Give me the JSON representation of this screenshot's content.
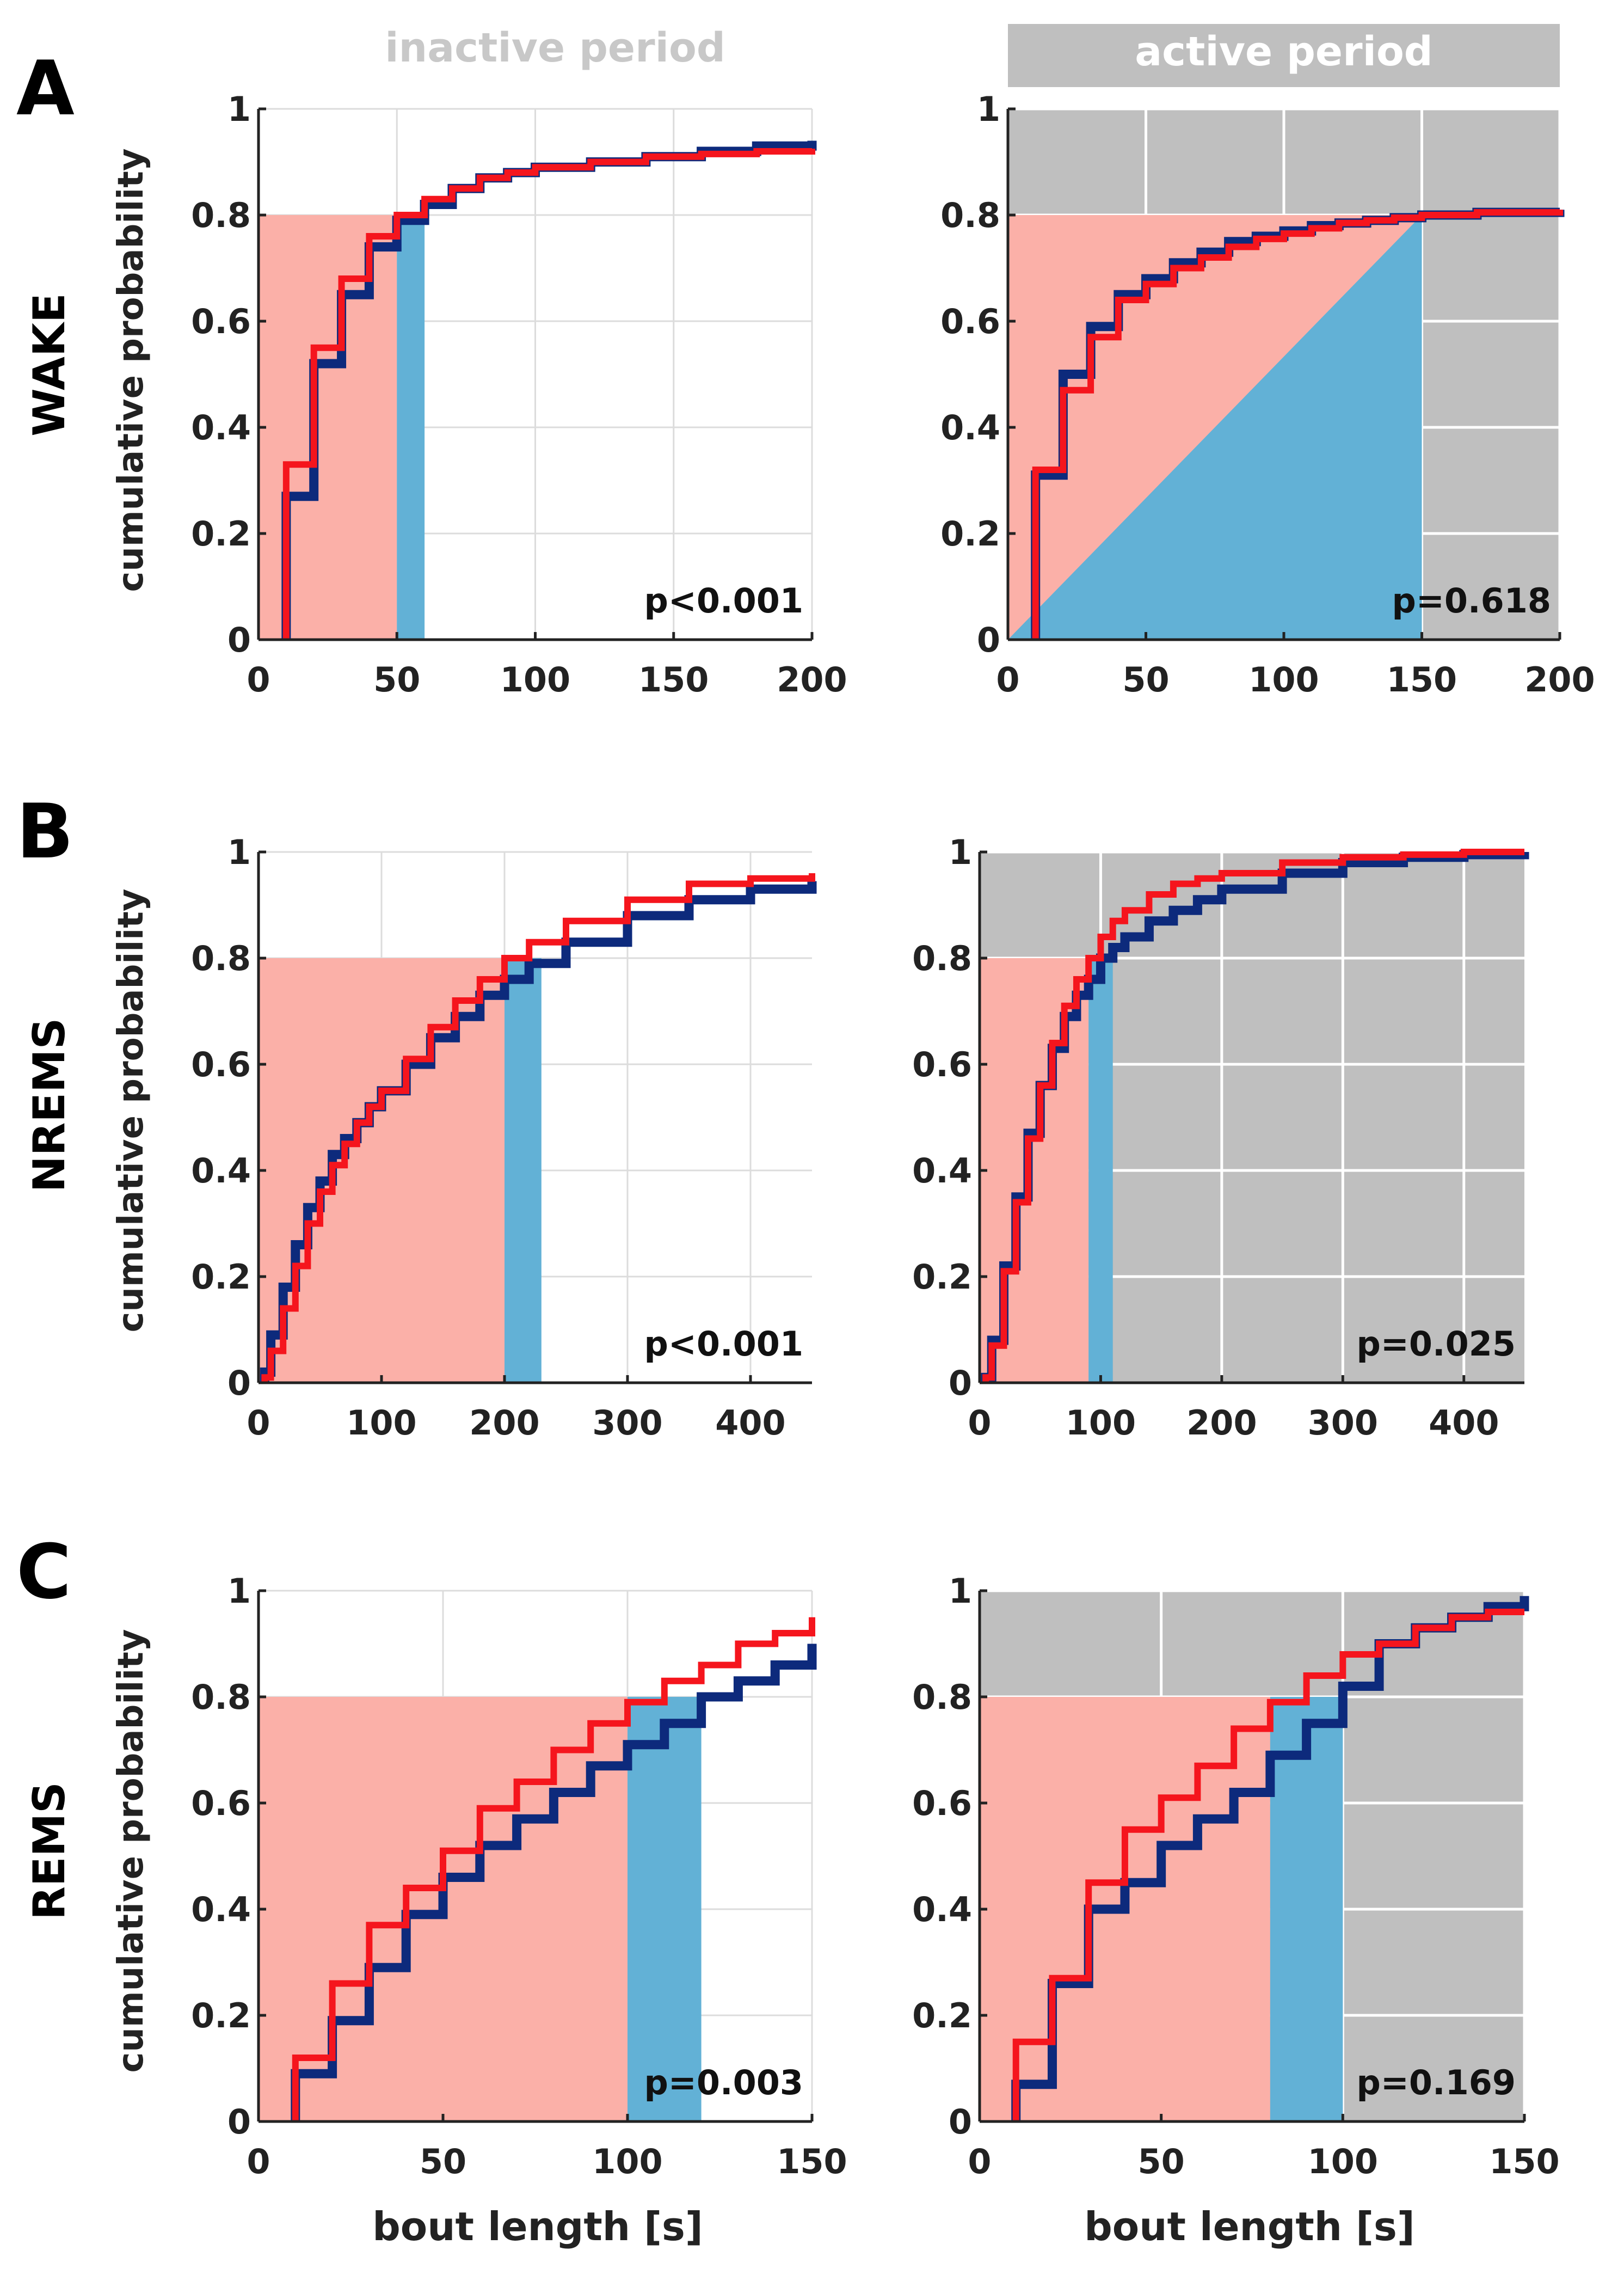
{
  "column_headers": {
    "inactive": "inactive period",
    "active": "active period"
  },
  "rows": [
    {
      "letter": "A",
      "state": "WAKE"
    },
    {
      "letter": "B",
      "state": "NREMS"
    },
    {
      "letter": "C",
      "state": "REMS"
    }
  ],
  "ylabel": "cumulative probability",
  "xlabel": "bout length [s]",
  "colors": {
    "series_blue": "#0d2a7c",
    "series_red": "#f5151d",
    "shade_pink": "#fbb0a8",
    "shade_blue": "#62b1d6",
    "active_background": "#bfbfbf",
    "header_inactive_text": "#c8c8c8"
  },
  "chart_data": [
    {
      "id": "A-inactive",
      "type": "line",
      "title": "inactive period",
      "row": "WAKE",
      "xlim": [
        0,
        200
      ],
      "ylim": [
        0,
        1
      ],
      "xticks": [
        0,
        50,
        100,
        150,
        200
      ],
      "yticks": [
        0,
        0.2,
        0.4,
        0.6,
        0.8,
        1
      ],
      "xticklabels": [
        "0",
        "50",
        "100",
        "150",
        "200"
      ],
      "yticklabels": [
        "0",
        "0.2",
        "0.4",
        "0.6",
        "0.8",
        "1"
      ],
      "xlabel": "",
      "ylabel": "cumulative probability",
      "shaded_background": false,
      "p_value": "p<0.001",
      "pink_region": {
        "x_end": 50,
        "y_top": 0.8
      },
      "blue_region": {
        "x_start": 50,
        "x_end": 60,
        "y_top": 0.8
      },
      "series": [
        {
          "name": "blue",
          "x": [
            10,
            20,
            30,
            40,
            50,
            60,
            70,
            80,
            90,
            100,
            120,
            140,
            160,
            180,
            200
          ],
          "y": [
            0.27,
            0.52,
            0.65,
            0.74,
            0.79,
            0.82,
            0.85,
            0.87,
            0.88,
            0.89,
            0.9,
            0.91,
            0.92,
            0.93,
            0.94
          ]
        },
        {
          "name": "red",
          "x": [
            10,
            20,
            30,
            40,
            50,
            60,
            70,
            80,
            90,
            100,
            120,
            140,
            160,
            180,
            200
          ],
          "y": [
            0.33,
            0.55,
            0.68,
            0.76,
            0.8,
            0.83,
            0.85,
            0.87,
            0.88,
            0.89,
            0.9,
            0.91,
            0.915,
            0.92,
            0.925
          ]
        }
      ]
    },
    {
      "id": "A-active",
      "type": "line",
      "title": "active period",
      "row": "WAKE",
      "xlim": [
        0,
        200
      ],
      "ylim": [
        0,
        1
      ],
      "xticks": [
        0,
        50,
        100,
        150,
        200
      ],
      "yticks": [
        0,
        0.2,
        0.4,
        0.6,
        0.8,
        1
      ],
      "xticklabels": [
        "0",
        "50",
        "100",
        "150",
        "200"
      ],
      "yticklabels": [
        "0",
        "0.2",
        "0.4",
        "0.6",
        "0.8",
        "1"
      ],
      "xlabel": "",
      "ylabel": "",
      "shaded_background": true,
      "p_value": "p=0.618",
      "pink_region": {
        "x_end": 150,
        "y_top": 0.8
      },
      "blue_triangle": {
        "x_start": 0,
        "x_end": 150,
        "y_top": 0.8
      },
      "series": [
        {
          "name": "blue",
          "x": [
            10,
            20,
            30,
            40,
            50,
            60,
            70,
            80,
            90,
            100,
            110,
            120,
            130,
            140,
            150,
            170,
            200
          ],
          "y": [
            0.31,
            0.5,
            0.59,
            0.65,
            0.68,
            0.71,
            0.73,
            0.75,
            0.76,
            0.77,
            0.78,
            0.785,
            0.79,
            0.795,
            0.8,
            0.805,
            0.81
          ]
        },
        {
          "name": "red",
          "x": [
            10,
            20,
            30,
            40,
            50,
            60,
            70,
            80,
            90,
            100,
            110,
            120,
            130,
            140,
            150,
            170,
            200
          ],
          "y": [
            0.32,
            0.47,
            0.57,
            0.64,
            0.67,
            0.7,
            0.72,
            0.74,
            0.755,
            0.765,
            0.775,
            0.785,
            0.79,
            0.795,
            0.8,
            0.805,
            0.81
          ]
        }
      ]
    },
    {
      "id": "B-inactive",
      "type": "line",
      "title": "inactive period",
      "row": "NREMS",
      "xlim": [
        0,
        450
      ],
      "ylim": [
        0,
        1
      ],
      "xticks": [
        0,
        100,
        200,
        300,
        400
      ],
      "yticks": [
        0,
        0.2,
        0.4,
        0.6,
        0.8,
        1
      ],
      "xticklabels": [
        "0",
        "100",
        "200",
        "300",
        "400"
      ],
      "yticklabels": [
        "0",
        "0.2",
        "0.4",
        "0.6",
        "0.8",
        "1"
      ],
      "xlabel": "",
      "ylabel": "cumulative probability",
      "shaded_background": false,
      "p_value": "p<0.001",
      "pink_region": {
        "x_end": 200,
        "y_top": 0.8
      },
      "blue_region": {
        "x_start": 200,
        "x_end": 230,
        "y_top": 0.8
      },
      "series": [
        {
          "name": "blue",
          "x": [
            5,
            10,
            20,
            30,
            40,
            50,
            60,
            70,
            80,
            90,
            100,
            120,
            140,
            160,
            180,
            200,
            220,
            250,
            300,
            350,
            400,
            450
          ],
          "y": [
            0.02,
            0.09,
            0.18,
            0.26,
            0.33,
            0.38,
            0.43,
            0.46,
            0.49,
            0.52,
            0.55,
            0.6,
            0.65,
            0.69,
            0.73,
            0.76,
            0.79,
            0.83,
            0.88,
            0.91,
            0.93,
            0.945
          ]
        },
        {
          "name": "red",
          "x": [
            5,
            10,
            20,
            30,
            40,
            50,
            60,
            70,
            80,
            90,
            100,
            120,
            140,
            160,
            180,
            200,
            220,
            250,
            300,
            350,
            400,
            450
          ],
          "y": [
            0.01,
            0.06,
            0.14,
            0.22,
            0.3,
            0.36,
            0.41,
            0.45,
            0.49,
            0.52,
            0.55,
            0.61,
            0.67,
            0.72,
            0.76,
            0.8,
            0.83,
            0.87,
            0.91,
            0.94,
            0.95,
            0.96
          ]
        }
      ]
    },
    {
      "id": "B-active",
      "type": "line",
      "title": "active period",
      "row": "NREMS",
      "xlim": [
        0,
        450
      ],
      "ylim": [
        0,
        1
      ],
      "xticks": [
        0,
        100,
        200,
        300,
        400
      ],
      "yticks": [
        0,
        0.2,
        0.4,
        0.6,
        0.8,
        1
      ],
      "xticklabels": [
        "0",
        "100",
        "200",
        "300",
        "400"
      ],
      "yticklabels": [
        "0",
        "0.2",
        "0.4",
        "0.6",
        "0.8",
        "1"
      ],
      "xlabel": "",
      "ylabel": "",
      "shaded_background": true,
      "p_value": "p=0.025",
      "pink_region": {
        "x_end": 90,
        "y_top": 0.8
      },
      "blue_region": {
        "x_start": 90,
        "x_end": 110,
        "y_top": 0.8
      },
      "series": [
        {
          "name": "blue",
          "x": [
            5,
            10,
            20,
            30,
            40,
            50,
            60,
            70,
            80,
            90,
            100,
            110,
            120,
            140,
            160,
            180,
            200,
            250,
            300,
            350,
            400,
            450
          ],
          "y": [
            0.01,
            0.08,
            0.22,
            0.35,
            0.47,
            0.56,
            0.63,
            0.69,
            0.73,
            0.76,
            0.8,
            0.82,
            0.84,
            0.87,
            0.89,
            0.91,
            0.93,
            0.96,
            0.98,
            0.99,
            0.995,
            1.0
          ]
        },
        {
          "name": "red",
          "x": [
            5,
            10,
            20,
            30,
            40,
            50,
            60,
            70,
            80,
            90,
            100,
            110,
            120,
            140,
            160,
            180,
            200,
            250,
            300,
            350,
            400,
            450
          ],
          "y": [
            0.01,
            0.07,
            0.21,
            0.34,
            0.46,
            0.56,
            0.64,
            0.71,
            0.76,
            0.8,
            0.84,
            0.87,
            0.89,
            0.92,
            0.94,
            0.95,
            0.96,
            0.98,
            0.99,
            0.995,
            1.0,
            1.0
          ]
        }
      ]
    },
    {
      "id": "C-inactive",
      "type": "line",
      "title": "inactive period",
      "row": "REMS",
      "xlim": [
        0,
        150
      ],
      "ylim": [
        0,
        1
      ],
      "xticks": [
        0,
        50,
        100,
        150
      ],
      "yticks": [
        0,
        0.2,
        0.4,
        0.6,
        0.8,
        1
      ],
      "xticklabels": [
        "0",
        "50",
        "100",
        "150"
      ],
      "yticklabels": [
        "0",
        "0.2",
        "0.4",
        "0.6",
        "0.8",
        "1"
      ],
      "xlabel": "bout length [s]",
      "ylabel": "cumulative probability",
      "shaded_background": false,
      "p_value": "p=0.003",
      "pink_region": {
        "x_end": 100,
        "y_top": 0.8
      },
      "blue_region": {
        "x_start": 100,
        "x_end": 120,
        "y_top": 0.8
      },
      "series": [
        {
          "name": "blue",
          "x": [
            10,
            20,
            30,
            40,
            50,
            60,
            70,
            80,
            90,
            100,
            110,
            120,
            130,
            140,
            150
          ],
          "y": [
            0.09,
            0.19,
            0.29,
            0.39,
            0.46,
            0.52,
            0.57,
            0.62,
            0.67,
            0.71,
            0.75,
            0.8,
            0.83,
            0.86,
            0.9
          ]
        },
        {
          "name": "red",
          "x": [
            10,
            20,
            30,
            40,
            50,
            60,
            70,
            80,
            90,
            100,
            110,
            120,
            130,
            140,
            150
          ],
          "y": [
            0.12,
            0.26,
            0.37,
            0.44,
            0.51,
            0.59,
            0.64,
            0.7,
            0.75,
            0.79,
            0.83,
            0.86,
            0.9,
            0.92,
            0.95
          ]
        }
      ]
    },
    {
      "id": "C-active",
      "type": "line",
      "title": "active period",
      "row": "REMS",
      "xlim": [
        0,
        150
      ],
      "ylim": [
        0,
        1
      ],
      "xticks": [
        0,
        50,
        100,
        150
      ],
      "yticks": [
        0,
        0.2,
        0.4,
        0.6,
        0.8,
        1
      ],
      "xticklabels": [
        "0",
        "50",
        "100",
        "150"
      ],
      "yticklabels": [
        "0",
        "0.2",
        "0.4",
        "0.6",
        "0.8",
        "1"
      ],
      "xlabel": "bout length [s]",
      "ylabel": "",
      "shaded_background": true,
      "p_value": "p=0.169",
      "pink_region": {
        "x_end": 80,
        "y_top": 0.8
      },
      "blue_region": {
        "x_start": 80,
        "x_end": 100,
        "y_top": 0.8
      },
      "series": [
        {
          "name": "blue",
          "x": [
            10,
            20,
            30,
            40,
            50,
            60,
            70,
            80,
            90,
            100,
            110,
            120,
            130,
            140,
            150
          ],
          "y": [
            0.07,
            0.26,
            0.4,
            0.45,
            0.52,
            0.57,
            0.62,
            0.69,
            0.75,
            0.82,
            0.9,
            0.93,
            0.95,
            0.97,
            0.99
          ]
        },
        {
          "name": "red",
          "x": [
            10,
            20,
            30,
            40,
            50,
            60,
            70,
            80,
            90,
            100,
            110,
            120,
            130,
            140,
            150
          ],
          "y": [
            0.15,
            0.27,
            0.45,
            0.55,
            0.61,
            0.67,
            0.74,
            0.79,
            0.84,
            0.88,
            0.9,
            0.93,
            0.95,
            0.96,
            0.96
          ]
        }
      ]
    }
  ]
}
